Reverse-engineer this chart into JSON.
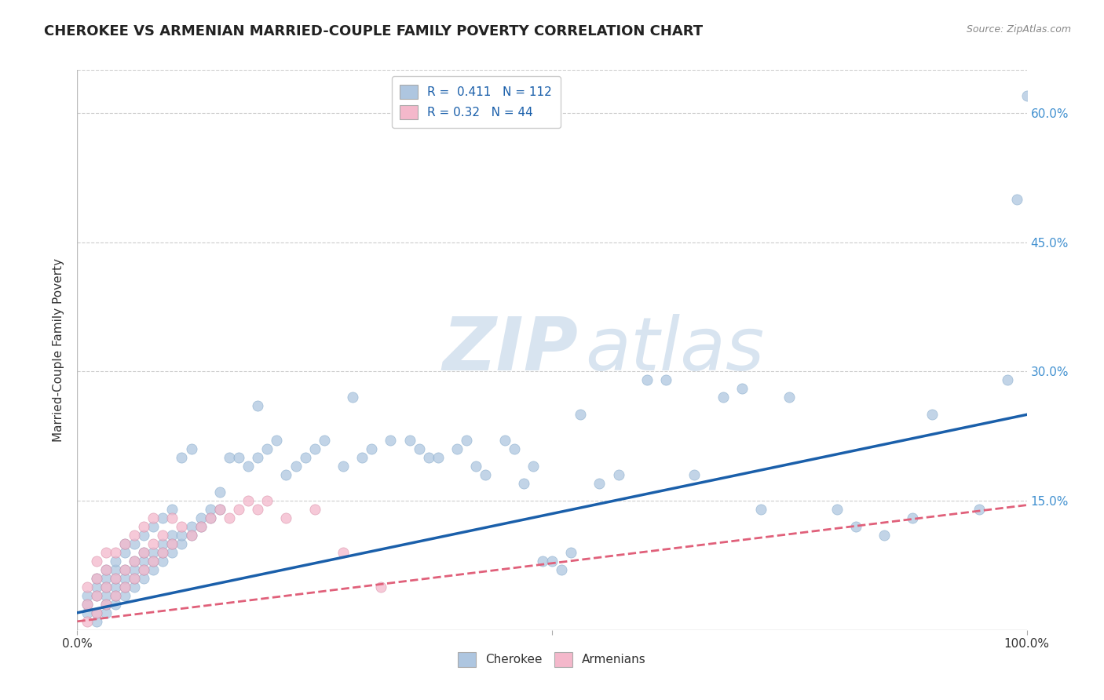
{
  "title": "CHEROKEE VS ARMENIAN MARRIED-COUPLE FAMILY POVERTY CORRELATION CHART",
  "source": "Source: ZipAtlas.com",
  "ylabel": "Married-Couple Family Poverty",
  "xlim": [
    0,
    1.0
  ],
  "ylim": [
    0,
    0.65
  ],
  "cherokee_color": "#aec6e0",
  "armenian_color": "#f4b8cb",
  "cherokee_line_color": "#1a5faa",
  "armenian_line_color": "#e0607a",
  "cherokee_R": 0.411,
  "cherokee_N": 112,
  "armenian_R": 0.32,
  "armenian_N": 44,
  "watermark_zip": "ZIP",
  "watermark_atlas": "atlas",
  "watermark_color": "#d8e4f0",
  "background_color": "#ffffff",
  "grid_color": "#cccccc",
  "cherokee_x": [
    0.01,
    0.01,
    0.01,
    0.02,
    0.02,
    0.02,
    0.02,
    0.02,
    0.03,
    0.03,
    0.03,
    0.03,
    0.03,
    0.03,
    0.04,
    0.04,
    0.04,
    0.04,
    0.04,
    0.04,
    0.05,
    0.05,
    0.05,
    0.05,
    0.05,
    0.05,
    0.06,
    0.06,
    0.06,
    0.06,
    0.06,
    0.07,
    0.07,
    0.07,
    0.07,
    0.07,
    0.08,
    0.08,
    0.08,
    0.08,
    0.09,
    0.09,
    0.09,
    0.09,
    0.1,
    0.1,
    0.1,
    0.1,
    0.11,
    0.11,
    0.11,
    0.12,
    0.12,
    0.12,
    0.13,
    0.13,
    0.14,
    0.14,
    0.15,
    0.15,
    0.16,
    0.17,
    0.18,
    0.19,
    0.19,
    0.2,
    0.21,
    0.22,
    0.23,
    0.24,
    0.25,
    0.26,
    0.28,
    0.29,
    0.3,
    0.31,
    0.33,
    0.35,
    0.36,
    0.37,
    0.38,
    0.4,
    0.41,
    0.42,
    0.43,
    0.45,
    0.46,
    0.47,
    0.48,
    0.49,
    0.5,
    0.51,
    0.52,
    0.53,
    0.55,
    0.57,
    0.6,
    0.62,
    0.65,
    0.68,
    0.7,
    0.72,
    0.75,
    0.8,
    0.82,
    0.85,
    0.88,
    0.9,
    0.95,
    0.98,
    0.99,
    1.0
  ],
  "cherokee_y": [
    0.02,
    0.03,
    0.04,
    0.01,
    0.02,
    0.04,
    0.05,
    0.06,
    0.02,
    0.03,
    0.04,
    0.05,
    0.06,
    0.07,
    0.03,
    0.04,
    0.05,
    0.06,
    0.07,
    0.08,
    0.04,
    0.05,
    0.06,
    0.07,
    0.09,
    0.1,
    0.05,
    0.06,
    0.07,
    0.08,
    0.1,
    0.06,
    0.07,
    0.08,
    0.09,
    0.11,
    0.07,
    0.08,
    0.09,
    0.12,
    0.08,
    0.09,
    0.1,
    0.13,
    0.09,
    0.1,
    0.11,
    0.14,
    0.1,
    0.11,
    0.2,
    0.11,
    0.12,
    0.21,
    0.12,
    0.13,
    0.13,
    0.14,
    0.14,
    0.16,
    0.2,
    0.2,
    0.19,
    0.2,
    0.26,
    0.21,
    0.22,
    0.18,
    0.19,
    0.2,
    0.21,
    0.22,
    0.19,
    0.27,
    0.2,
    0.21,
    0.22,
    0.22,
    0.21,
    0.2,
    0.2,
    0.21,
    0.22,
    0.19,
    0.18,
    0.22,
    0.21,
    0.17,
    0.19,
    0.08,
    0.08,
    0.07,
    0.09,
    0.25,
    0.17,
    0.18,
    0.29,
    0.29,
    0.18,
    0.27,
    0.28,
    0.14,
    0.27,
    0.14,
    0.12,
    0.11,
    0.13,
    0.25,
    0.14,
    0.29,
    0.5,
    0.62
  ],
  "armenian_x": [
    0.01,
    0.01,
    0.01,
    0.02,
    0.02,
    0.02,
    0.02,
    0.03,
    0.03,
    0.03,
    0.03,
    0.04,
    0.04,
    0.04,
    0.05,
    0.05,
    0.05,
    0.06,
    0.06,
    0.06,
    0.07,
    0.07,
    0.07,
    0.08,
    0.08,
    0.08,
    0.09,
    0.09,
    0.1,
    0.1,
    0.11,
    0.12,
    0.13,
    0.14,
    0.15,
    0.16,
    0.17,
    0.18,
    0.19,
    0.2,
    0.22,
    0.25,
    0.28,
    0.32
  ],
  "armenian_y": [
    0.01,
    0.03,
    0.05,
    0.02,
    0.04,
    0.06,
    0.08,
    0.03,
    0.05,
    0.07,
    0.09,
    0.04,
    0.06,
    0.09,
    0.05,
    0.07,
    0.1,
    0.06,
    0.08,
    0.11,
    0.07,
    0.09,
    0.12,
    0.08,
    0.1,
    0.13,
    0.09,
    0.11,
    0.1,
    0.13,
    0.12,
    0.11,
    0.12,
    0.13,
    0.14,
    0.13,
    0.14,
    0.15,
    0.14,
    0.15,
    0.13,
    0.14,
    0.09,
    0.05
  ],
  "cherokee_line_x": [
    0.0,
    1.0
  ],
  "cherokee_line_y": [
    0.02,
    0.25
  ],
  "armenian_line_x": [
    0.0,
    1.0
  ],
  "armenian_line_y": [
    0.01,
    0.145
  ]
}
